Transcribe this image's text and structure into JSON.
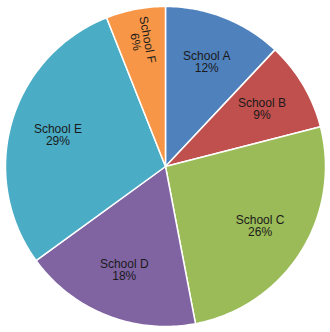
{
  "chart_data": {
    "type": "pie",
    "categories": [
      "School A",
      "School B",
      "School C",
      "School D",
      "School E",
      "School F"
    ],
    "values": [
      12,
      9,
      26,
      18,
      29,
      6
    ],
    "value_labels": [
      "12%",
      "9%",
      "26%",
      "18%",
      "29%",
      "6%"
    ],
    "colors": [
      "#4f81bd",
      "#c0504d",
      "#9bbb59",
      "#8064a2",
      "#4bacc6",
      "#f79646"
    ],
    "data_labels": true
  }
}
